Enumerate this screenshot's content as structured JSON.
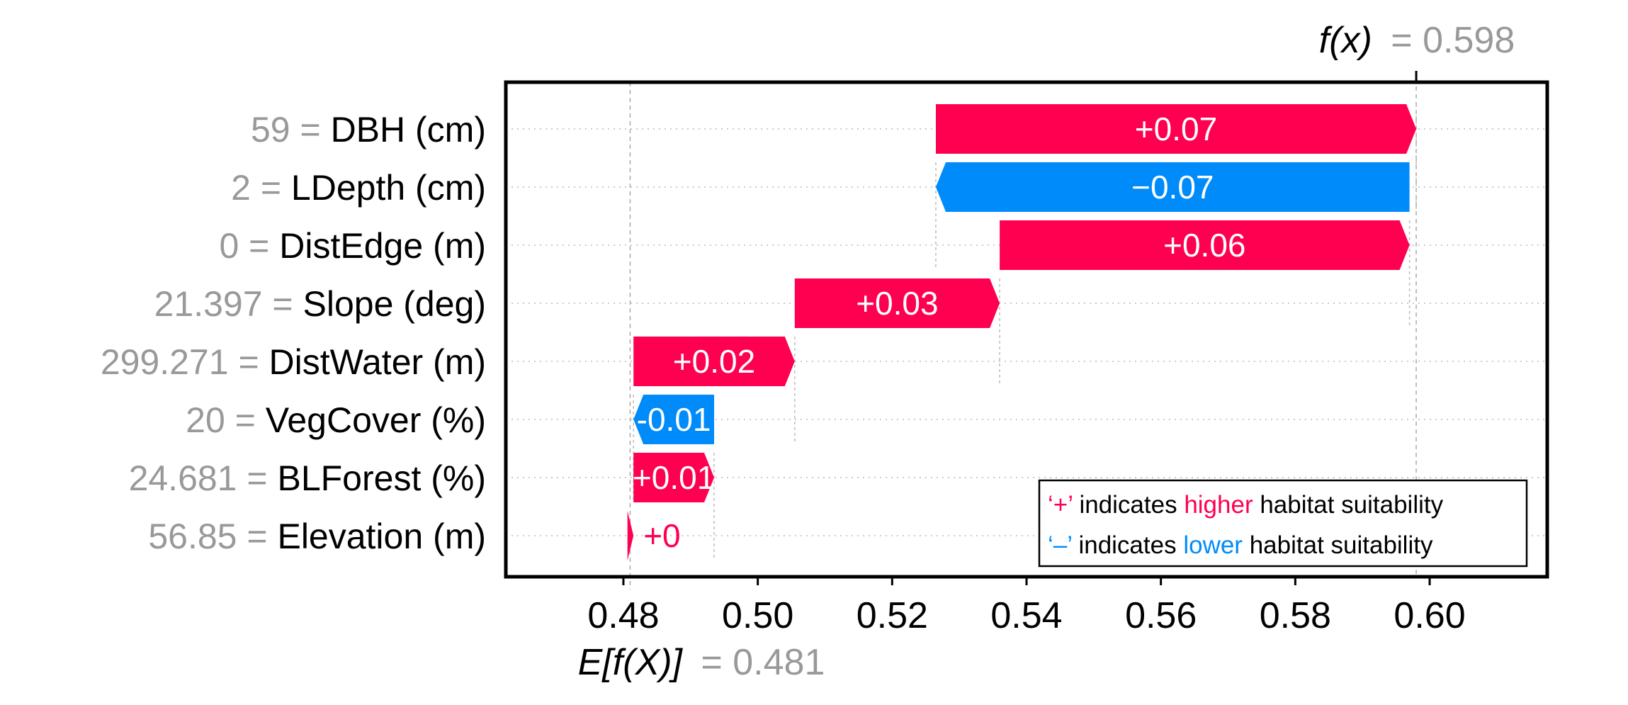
{
  "chart_data": {
    "type": "waterfall",
    "fx_label_prefix": "f(x)",
    "fx_value": "= 0.598",
    "ex_label_prefix": "E[f(X)]",
    "ex_value": "= 0.481",
    "base_value": 0.481,
    "final_value": 0.598,
    "xlim": [
      0.4625,
      0.6175
    ],
    "x_ticks": [
      0.48,
      0.5,
      0.52,
      0.54,
      0.56,
      0.58,
      0.6
    ],
    "x_tick_labels": [
      "0.48",
      "0.50",
      "0.52",
      "0.54",
      "0.56",
      "0.58",
      "0.60"
    ],
    "features": [
      {
        "value_text": "59 =",
        "name": "DBH (cm)",
        "start": 0.5265,
        "end": 0.598,
        "label": "+0.07",
        "sign": "pos"
      },
      {
        "value_text": "2 =",
        "name": "LDepth (cm)",
        "start": 0.597,
        "end": 0.5265,
        "label": "−0.07",
        "sign": "neg"
      },
      {
        "value_text": "0 =",
        "name": "DistEdge (m)",
        "start": 0.536,
        "end": 0.597,
        "label": "+0.06",
        "sign": "pos"
      },
      {
        "value_text": "21.397 =",
        "name": "Slope (deg)",
        "start": 0.5055,
        "end": 0.536,
        "label": "+0.03",
        "sign": "pos"
      },
      {
        "value_text": "299.271 =",
        "name": "DistWater (m)",
        "start": 0.4815,
        "end": 0.5055,
        "label": "+0.02",
        "sign": "pos"
      },
      {
        "value_text": "20 =",
        "name": "VegCover (%)",
        "start": 0.4935,
        "end": 0.4815,
        "label": "-0.01",
        "sign": "neg"
      },
      {
        "value_text": "24.681 =",
        "name": "BLForest (%)",
        "start": 0.4815,
        "end": 0.4935,
        "label": "+0.01",
        "sign": "pos"
      },
      {
        "value_text": "56.85 =",
        "name": "Elevation (m)",
        "start": 0.4806,
        "end": 0.4815,
        "label": "+0",
        "sign": "pos"
      }
    ],
    "legend": {
      "placement": "bottom-right",
      "line1": {
        "sym": "‘+’",
        "pre": " indicates ",
        "key": "higher",
        "post": " habitat suitability"
      },
      "line2": {
        "sym": "‘–’",
        "pre": " indicates ",
        "key": "lower",
        "post": " habitat suitability"
      }
    },
    "colors": {
      "positive": "#ff0051",
      "negative": "#008bfb",
      "muted": "#999999",
      "text": "#000000"
    }
  }
}
